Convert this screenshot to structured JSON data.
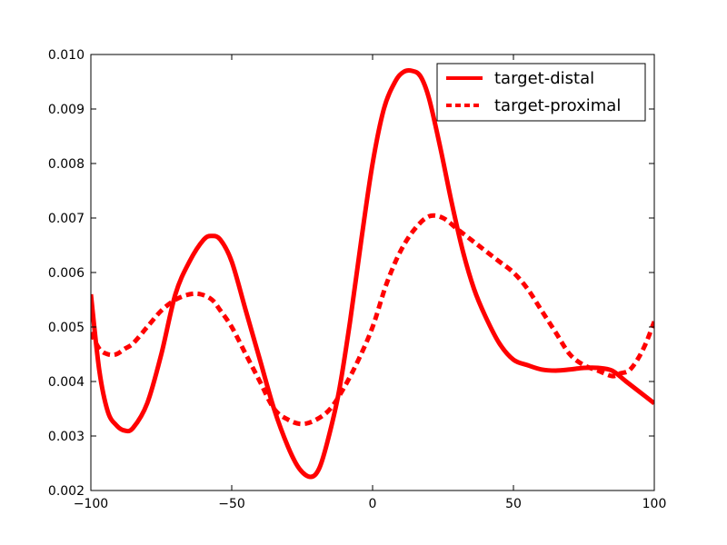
{
  "chart_data": {
    "type": "line",
    "title": "",
    "xlabel": "",
    "ylabel": "",
    "xlim": [
      -100,
      100
    ],
    "ylim": [
      0.002,
      0.01
    ],
    "xticks": [
      -100,
      -50,
      0,
      50,
      100
    ],
    "xtick_labels": [
      "−100",
      "−50",
      "0",
      "50",
      "100"
    ],
    "yticks": [
      0.002,
      0.003,
      0.004,
      0.005,
      0.006,
      0.007,
      0.008,
      0.009,
      0.01
    ],
    "ytick_labels": [
      "0.002",
      "0.003",
      "0.004",
      "0.005",
      "0.006",
      "0.007",
      "0.008",
      "0.009",
      "0.010"
    ],
    "grid": false,
    "legend_position": "top-right",
    "series": [
      {
        "name": "target-distal",
        "color": "#ff0000",
        "style": "solid",
        "x": [
          -100,
          -97,
          -94,
          -91,
          -88,
          -85,
          -80,
          -75,
          -70,
          -65,
          -60,
          -57,
          -54,
          -50,
          -45,
          -40,
          -35,
          -30,
          -26,
          -22,
          -19,
          -16,
          -12,
          -8,
          -4,
          0,
          4,
          8,
          11,
          14,
          17,
          20,
          24,
          28,
          32,
          36,
          40,
          45,
          50,
          55,
          60,
          65,
          70,
          75,
          80,
          85,
          90,
          95,
          100
        ],
        "y": [
          0.0056,
          0.0042,
          0.00345,
          0.0032,
          0.0031,
          0.00315,
          0.0036,
          0.0045,
          0.0056,
          0.0062,
          0.0066,
          0.00667,
          0.0066,
          0.0062,
          0.0053,
          0.0044,
          0.0035,
          0.0028,
          0.0024,
          0.00225,
          0.0024,
          0.0029,
          0.0038,
          0.0051,
          0.0066,
          0.008,
          0.009,
          0.0095,
          0.00968,
          0.0097,
          0.0096,
          0.0092,
          0.0083,
          0.0073,
          0.0064,
          0.0057,
          0.0052,
          0.0047,
          0.0044,
          0.0043,
          0.00422,
          0.0042,
          0.00422,
          0.00425,
          0.00425,
          0.0042,
          0.004,
          0.0038,
          0.0036
        ]
      },
      {
        "name": "target-proximal",
        "color": "#ff0000",
        "style": "dashed",
        "x": [
          -100,
          -97,
          -94,
          -91,
          -88,
          -85,
          -80,
          -75,
          -70,
          -65,
          -61,
          -57,
          -54,
          -50,
          -45,
          -40,
          -35,
          -30,
          -25,
          -20,
          -15,
          -10,
          -5,
          0,
          5,
          10,
          15,
          20,
          25,
          30,
          35,
          40,
          45,
          50,
          55,
          60,
          65,
          70,
          75,
          80,
          85,
          88,
          91,
          94,
          97,
          100
        ],
        "y": [
          0.0049,
          0.0046,
          0.0045,
          0.0045,
          0.0046,
          0.0047,
          0.005,
          0.0053,
          0.0055,
          0.0056,
          0.0056,
          0.0055,
          0.0053,
          0.005,
          0.0045,
          0.004,
          0.0035,
          0.0033,
          0.00322,
          0.0033,
          0.0035,
          0.0039,
          0.0044,
          0.005,
          0.0058,
          0.0064,
          0.0068,
          0.00703,
          0.007,
          0.0068,
          0.0066,
          0.0064,
          0.0062,
          0.006,
          0.0057,
          0.0053,
          0.0049,
          0.0045,
          0.0043,
          0.0042,
          0.0041,
          0.00415,
          0.0042,
          0.0044,
          0.0047,
          0.0051
        ]
      }
    ]
  }
}
